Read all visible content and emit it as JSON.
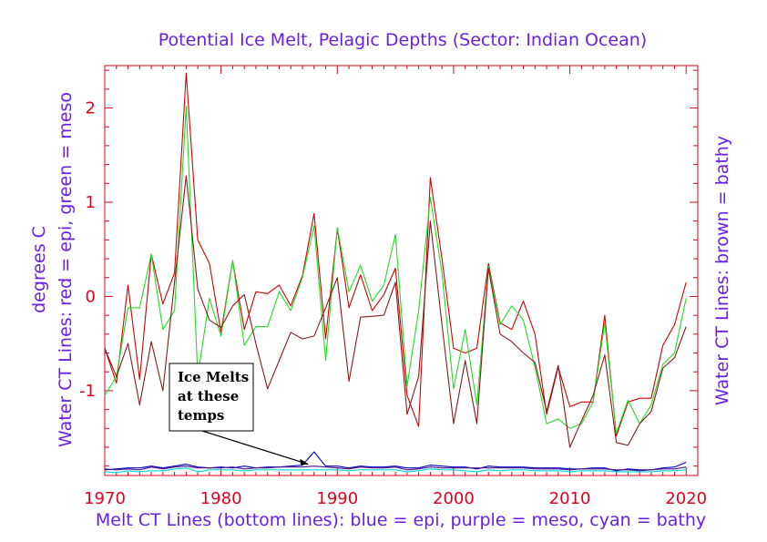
{
  "chart_data": {
    "type": "line",
    "title": "Potential Ice Melt, Pelagic Depths (Sector: Indian Ocean)",
    "xlabel": "Melt CT Lines (bottom lines): blue = epi, purple = meso, cyan = bathy",
    "ylabel_left_1": "degrees C",
    "ylabel_left_2": "Water CT Lines: red = epi, green = meso",
    "ylabel_right": "Water CT Lines: brown = bathy",
    "xlim": [
      1970,
      2021
    ],
    "ylim": [
      -1.9,
      2.45
    ],
    "x_ticks": [
      "1970",
      "1980",
      "1990",
      "2000",
      "2010",
      "2020"
    ],
    "y_ticks": [
      "2",
      "1",
      "0",
      "-1"
    ],
    "annotation": {
      "lines": [
        "Ice Melts",
        "at these",
        "temps"
      ],
      "arrow_to": [
        1987.5,
        -1.78
      ]
    },
    "colors": {
      "text": "#6a1fe6",
      "axis": "#e0001a",
      "red": "#d40000",
      "green": "#22dd22",
      "brown": "#8b1a1a",
      "blue": "#0000c8",
      "purple": "#4b1a8c",
      "cyan": "#00d8d8"
    },
    "x": [
      1970,
      1971,
      1972,
      1973,
      1974,
      1975,
      1976,
      1977,
      1978,
      1979,
      1980,
      1981,
      1982,
      1983,
      1984,
      1985,
      1986,
      1987,
      1988,
      1989,
      1990,
      1991,
      1992,
      1993,
      1994,
      1995,
      1996,
      1997,
      1998,
      1999,
      2000,
      2001,
      2002,
      2003,
      2004,
      2005,
      2006,
      2007,
      2008,
      2009,
      2010,
      2011,
      2012,
      2013,
      2014,
      2015,
      2016,
      2017,
      2018,
      2019,
      2020
    ],
    "series": [
      {
        "name": "red = epi",
        "color": "red",
        "values": [
          -0.55,
          -0.92,
          0.12,
          -0.88,
          0.45,
          -0.08,
          0.25,
          2.37,
          0.6,
          0.35,
          -0.38,
          0.38,
          -0.35,
          0.05,
          0.03,
          0.12,
          -0.1,
          0.22,
          0.88,
          -0.45,
          0.72,
          -0.12,
          0.23,
          -0.15,
          0.02,
          0.3,
          -1.05,
          -1.38,
          1.26,
          0.4,
          -0.55,
          -0.6,
          -0.55,
          0.35,
          -0.28,
          -0.35,
          -0.05,
          -0.4,
          -1.25,
          -0.75,
          -1.17,
          -1.12,
          -1.12,
          -0.2,
          -1.48,
          -1.12,
          -1.08,
          -1.08,
          -0.52,
          -0.3,
          0.15
        ]
      },
      {
        "name": "green = meso",
        "color": "green",
        "values": [
          -1.05,
          -0.85,
          -0.12,
          -0.12,
          0.45,
          -0.35,
          -0.15,
          2.02,
          -0.85,
          -0.02,
          -0.42,
          0.38,
          -0.52,
          -0.32,
          -0.32,
          0.05,
          -0.15,
          0.2,
          0.75,
          -0.68,
          0.73,
          0.05,
          0.33,
          -0.05,
          0.12,
          0.66,
          -0.95,
          -0.15,
          1.05,
          0.25,
          -0.98,
          -0.35,
          -1.15,
          0.32,
          -0.3,
          -0.1,
          -0.25,
          -0.75,
          -1.35,
          -1.3,
          -1.4,
          -1.35,
          -1.12,
          -0.28,
          -1.45,
          -1.1,
          -1.35,
          -1.15,
          -0.72,
          -0.6,
          -0.02
        ]
      },
      {
        "name": "brown = bathy",
        "color": "brown",
        "values": [
          -0.55,
          -0.85,
          -0.5,
          -1.15,
          -0.48,
          -1.0,
          0.15,
          1.28,
          0.08,
          -0.25,
          -0.33,
          -0.1,
          0.02,
          -0.5,
          -0.98,
          -0.68,
          -0.38,
          -0.45,
          -0.42,
          -0.12,
          0.2,
          -0.9,
          -0.22,
          -0.21,
          -0.2,
          0.15,
          -1.25,
          -0.85,
          0.8,
          -0.3,
          -1.35,
          -0.68,
          -1.35,
          0.3,
          -0.4,
          -0.48,
          -0.6,
          -0.7,
          -1.22,
          -0.73,
          -1.6,
          -1.32,
          -1.05,
          -0.62,
          -1.55,
          -1.58,
          -1.35,
          -1.22,
          -0.76,
          -0.65,
          -0.32
        ]
      },
      {
        "name": "blue = epi",
        "color": "blue",
        "values": [
          -1.84,
          -1.83,
          -1.82,
          -1.82,
          -1.8,
          -1.82,
          -1.8,
          -1.78,
          -1.81,
          -1.82,
          -1.81,
          -1.82,
          -1.8,
          -1.82,
          -1.81,
          -1.81,
          -1.8,
          -1.79,
          -1.65,
          -1.8,
          -1.8,
          -1.82,
          -1.8,
          -1.81,
          -1.81,
          -1.8,
          -1.82,
          -1.82,
          -1.79,
          -1.8,
          -1.81,
          -1.81,
          -1.83,
          -1.8,
          -1.81,
          -1.81,
          -1.81,
          -1.82,
          -1.82,
          -1.82,
          -1.83,
          -1.83,
          -1.82,
          -1.82,
          -1.85,
          -1.83,
          -1.84,
          -1.84,
          -1.82,
          -1.81,
          -1.76
        ]
      },
      {
        "name": "purple = meso",
        "color": "purple",
        "values": [
          -1.83,
          -1.84,
          -1.83,
          -1.84,
          -1.81,
          -1.83,
          -1.81,
          -1.8,
          -1.82,
          -1.82,
          -1.82,
          -1.81,
          -1.83,
          -1.82,
          -1.82,
          -1.81,
          -1.81,
          -1.81,
          -1.8,
          -1.81,
          -1.82,
          -1.83,
          -1.81,
          -1.82,
          -1.82,
          -1.81,
          -1.84,
          -1.83,
          -1.81,
          -1.82,
          -1.82,
          -1.82,
          -1.82,
          -1.82,
          -1.82,
          -1.82,
          -1.82,
          -1.83,
          -1.83,
          -1.83,
          -1.84,
          -1.83,
          -1.83,
          -1.83,
          -1.84,
          -1.84,
          -1.85,
          -1.84,
          -1.83,
          -1.83,
          -1.81
        ]
      },
      {
        "name": "cyan = bathy",
        "color": "cyan",
        "values": [
          -1.86,
          -1.87,
          -1.85,
          -1.86,
          -1.85,
          -1.85,
          -1.83,
          -1.82,
          -1.86,
          -1.84,
          -1.84,
          -1.84,
          -1.85,
          -1.84,
          -1.84,
          -1.84,
          -1.84,
          -1.84,
          -1.84,
          -1.84,
          -1.84,
          -1.85,
          -1.84,
          -1.84,
          -1.84,
          -1.84,
          -1.86,
          -1.85,
          -1.83,
          -1.84,
          -1.84,
          -1.85,
          -1.86,
          -1.84,
          -1.85,
          -1.84,
          -1.84,
          -1.85,
          -1.85,
          -1.85,
          -1.86,
          -1.85,
          -1.85,
          -1.85,
          -1.86,
          -1.86,
          -1.86,
          -1.86,
          -1.85,
          -1.85,
          -1.84
        ]
      }
    ]
  }
}
